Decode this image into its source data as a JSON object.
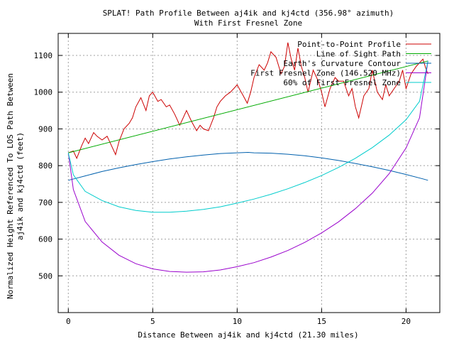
{
  "chart_data": {
    "type": "line",
    "title": "SPLAT! Path Profile Between aj4ik and kj4ctd (356.98° azimuth)",
    "subtitle": "With First Fresnel Zone",
    "xlabel": "Distance Between aj4ik and kj4ctd (21.30 miles)",
    "ylabel_lines": [
      "Normalized Height Referenced To LOS Path Between",
      "aj4ik and kj4ctd (feet)"
    ],
    "xlim": [
      -0.6,
      22.0
    ],
    "ylim": [
      400,
      1160
    ],
    "x_ticks": [
      0,
      5,
      10,
      15,
      20
    ],
    "y_ticks": [
      500,
      600,
      700,
      800,
      900,
      1000,
      1100
    ],
    "grid": true,
    "legend_position": "top-right",
    "series": [
      {
        "name": "Point-to-Point Profile",
        "color": "#cc0000",
        "x": [
          0,
          0.3,
          0.5,
          0.8,
          1.0,
          1.2,
          1.5,
          1.7,
          2.0,
          2.3,
          2.5,
          2.8,
          3.0,
          3.3,
          3.6,
          3.8,
          4.0,
          4.3,
          4.6,
          4.8,
          5.0,
          5.3,
          5.5,
          5.8,
          6.0,
          6.3,
          6.6,
          6.8,
          7.0,
          7.3,
          7.6,
          7.8,
          8.0,
          8.3,
          8.6,
          8.8,
          9.0,
          9.3,
          9.6,
          9.8,
          10.0,
          10.3,
          10.6,
          10.8,
          11.0,
          11.3,
          11.6,
          11.8,
          12.0,
          12.3,
          12.6,
          12.8,
          13.0,
          13.2,
          13.4,
          13.6,
          13.8,
          14.0,
          14.2,
          14.5,
          14.8,
          15.0,
          15.2,
          15.5,
          15.8,
          16.0,
          16.3,
          16.6,
          16.8,
          17.0,
          17.2,
          17.5,
          17.8,
          18.0,
          18.3,
          18.6,
          18.8,
          19.0,
          19.3,
          19.6,
          19.8,
          20.0,
          20.3,
          20.6,
          20.8,
          21.0,
          21.2,
          21.3
        ],
        "y": [
          835,
          840,
          820,
          855,
          875,
          860,
          890,
          880,
          870,
          880,
          860,
          830,
          865,
          900,
          915,
          930,
          960,
          985,
          950,
          990,
          1000,
          975,
          980,
          960,
          965,
          940,
          910,
          930,
          950,
          920,
          895,
          910,
          900,
          895,
          930,
          960,
          975,
          990,
          1000,
          1010,
          1020,
          995,
          970,
          1000,
          1040,
          1075,
          1060,
          1080,
          1110,
          1095,
          1050,
          1070,
          1135,
          1090,
          1060,
          1120,
          1070,
          1040,
          1000,
          1060,
          1030,
          1000,
          960,
          1010,
          1040,
          1030,
          1030,
          990,
          1010,
          960,
          930,
          990,
          1010,
          1060,
          1000,
          980,
          1020,
          990,
          1010,
          1030,
          1060,
          1010,
          1050,
          1070,
          1080,
          1090,
          1060,
          1050
        ]
      },
      {
        "name": "Line of Sight Path",
        "color": "#00aa00",
        "x": [
          0,
          21.3
        ],
        "y": [
          835,
          1085
        ]
      },
      {
        "name": "Earth's Curvature Contour",
        "color": "#0060ad",
        "x": [
          0,
          1,
          2,
          3,
          4,
          5,
          6,
          7,
          8,
          9,
          10,
          10.65,
          11,
          12,
          13,
          14,
          15,
          16,
          17,
          18,
          19,
          20,
          21,
          21.3
        ],
        "y": [
          760,
          772,
          784,
          794,
          803,
          811,
          818,
          824,
          829,
          833,
          835,
          836,
          835,
          834,
          831,
          827,
          821,
          814,
          806,
          797,
          787,
          776,
          764,
          760
        ]
      },
      {
        "name": "First Fresnel Zone (146.520 MHz)",
        "color": "#9900cc",
        "x": [
          0,
          0.3,
          1,
          2,
          3,
          4,
          5,
          6,
          7,
          8,
          9,
          10,
          11,
          12,
          13,
          14,
          15,
          16,
          17,
          18,
          19,
          20,
          20.8,
          21.3
        ],
        "y": [
          835,
          735,
          648,
          592,
          556,
          533,
          519,
          512,
          510,
          511,
          516,
          525,
          536,
          551,
          569,
          591,
          617,
          647,
          683,
          725,
          778,
          848,
          930,
          1085
        ]
      },
      {
        "name": "60% of First Fresnel Zone",
        "color": "#00cccc",
        "x": [
          0,
          0.3,
          1,
          2,
          3,
          4,
          5,
          6,
          7,
          8,
          9,
          10,
          11,
          12,
          13,
          14,
          15,
          16,
          17,
          18,
          19,
          20,
          20.8,
          21.3
        ],
        "y": [
          835,
          775,
          730,
          705,
          688,
          678,
          673,
          673,
          676,
          681,
          688,
          698,
          709,
          722,
          737,
          754,
          773,
          795,
          820,
          849,
          883,
          925,
          975,
          1085
        ]
      }
    ]
  }
}
